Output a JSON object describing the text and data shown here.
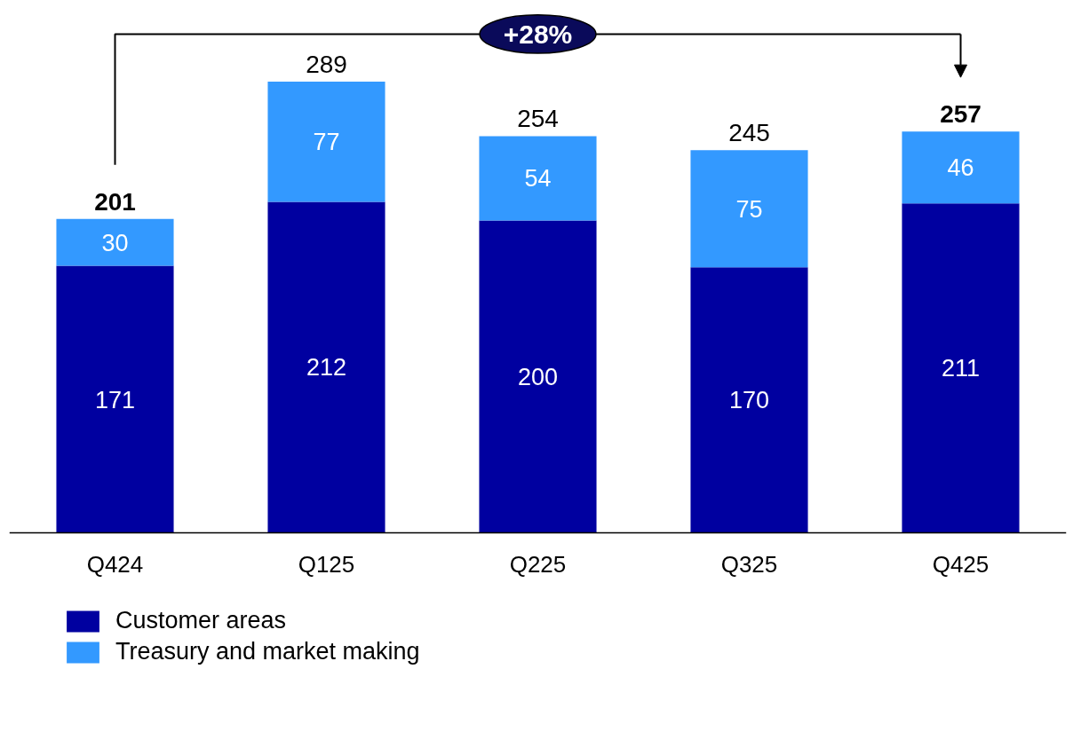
{
  "chart_data": {
    "type": "bar",
    "stacked": true,
    "categories": [
      "Q424",
      "Q125",
      "Q225",
      "Q325",
      "Q425"
    ],
    "series": [
      {
        "name": "Customer areas",
        "color": "#0000a0",
        "values": [
          171,
          212,
          200,
          170,
          211
        ]
      },
      {
        "name": "Treasury and market making",
        "color": "#3399ff",
        "values": [
          30,
          77,
          54,
          75,
          46
        ]
      }
    ],
    "totals": [
      "201",
      "289",
      "254",
      "245",
      "257"
    ],
    "data_labels": true,
    "annotations": [
      "+28%"
    ],
    "legend": "bottom left"
  }
}
